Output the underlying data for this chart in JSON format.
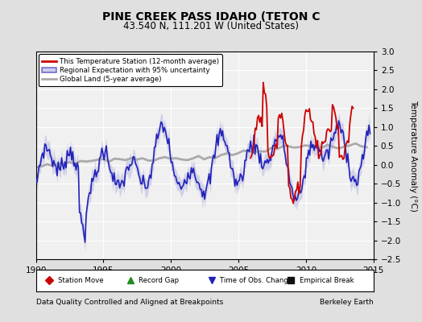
{
  "title": "PINE CREEK PASS IDAHO (TETON C",
  "subtitle": "43.540 N, 111.201 W (United States)",
  "xlabel_left": "Data Quality Controlled and Aligned at Breakpoints",
  "xlabel_right": "Berkeley Earth",
  "ylabel": "Temperature Anomaly (°C)",
  "xlim": [
    1990,
    2015
  ],
  "ylim": [
    -2.5,
    3
  ],
  "yticks": [
    -2.5,
    -2,
    -1.5,
    -1,
    -0.5,
    0,
    0.5,
    1,
    1.5,
    2,
    2.5,
    3
  ],
  "xticks": [
    1990,
    1995,
    2000,
    2005,
    2010,
    2015
  ],
  "bg_color": "#e0e0e0",
  "plot_bg_color": "#f0f0f0",
  "grid_color": "#ffffff",
  "red_line_color": "#cc0000",
  "blue_line_color": "#2222bb",
  "blue_fill_color": "#aaaadd",
  "gray_line_color": "#aaaaaa",
  "legend_labels": [
    "This Temperature Station (12-month average)",
    "Regional Expectation with 95% uncertainty",
    "Global Land (5-year average)"
  ],
  "bottom_legend": [
    {
      "label": "Station Move",
      "color": "#cc0000",
      "marker": "D"
    },
    {
      "label": "Record Gap",
      "color": "#228B22",
      "marker": "^"
    },
    {
      "label": "Time of Obs. Change",
      "color": "#2222bb",
      "marker": "v"
    },
    {
      "label": "Empirical Break",
      "color": "#111111",
      "marker": "s"
    }
  ]
}
